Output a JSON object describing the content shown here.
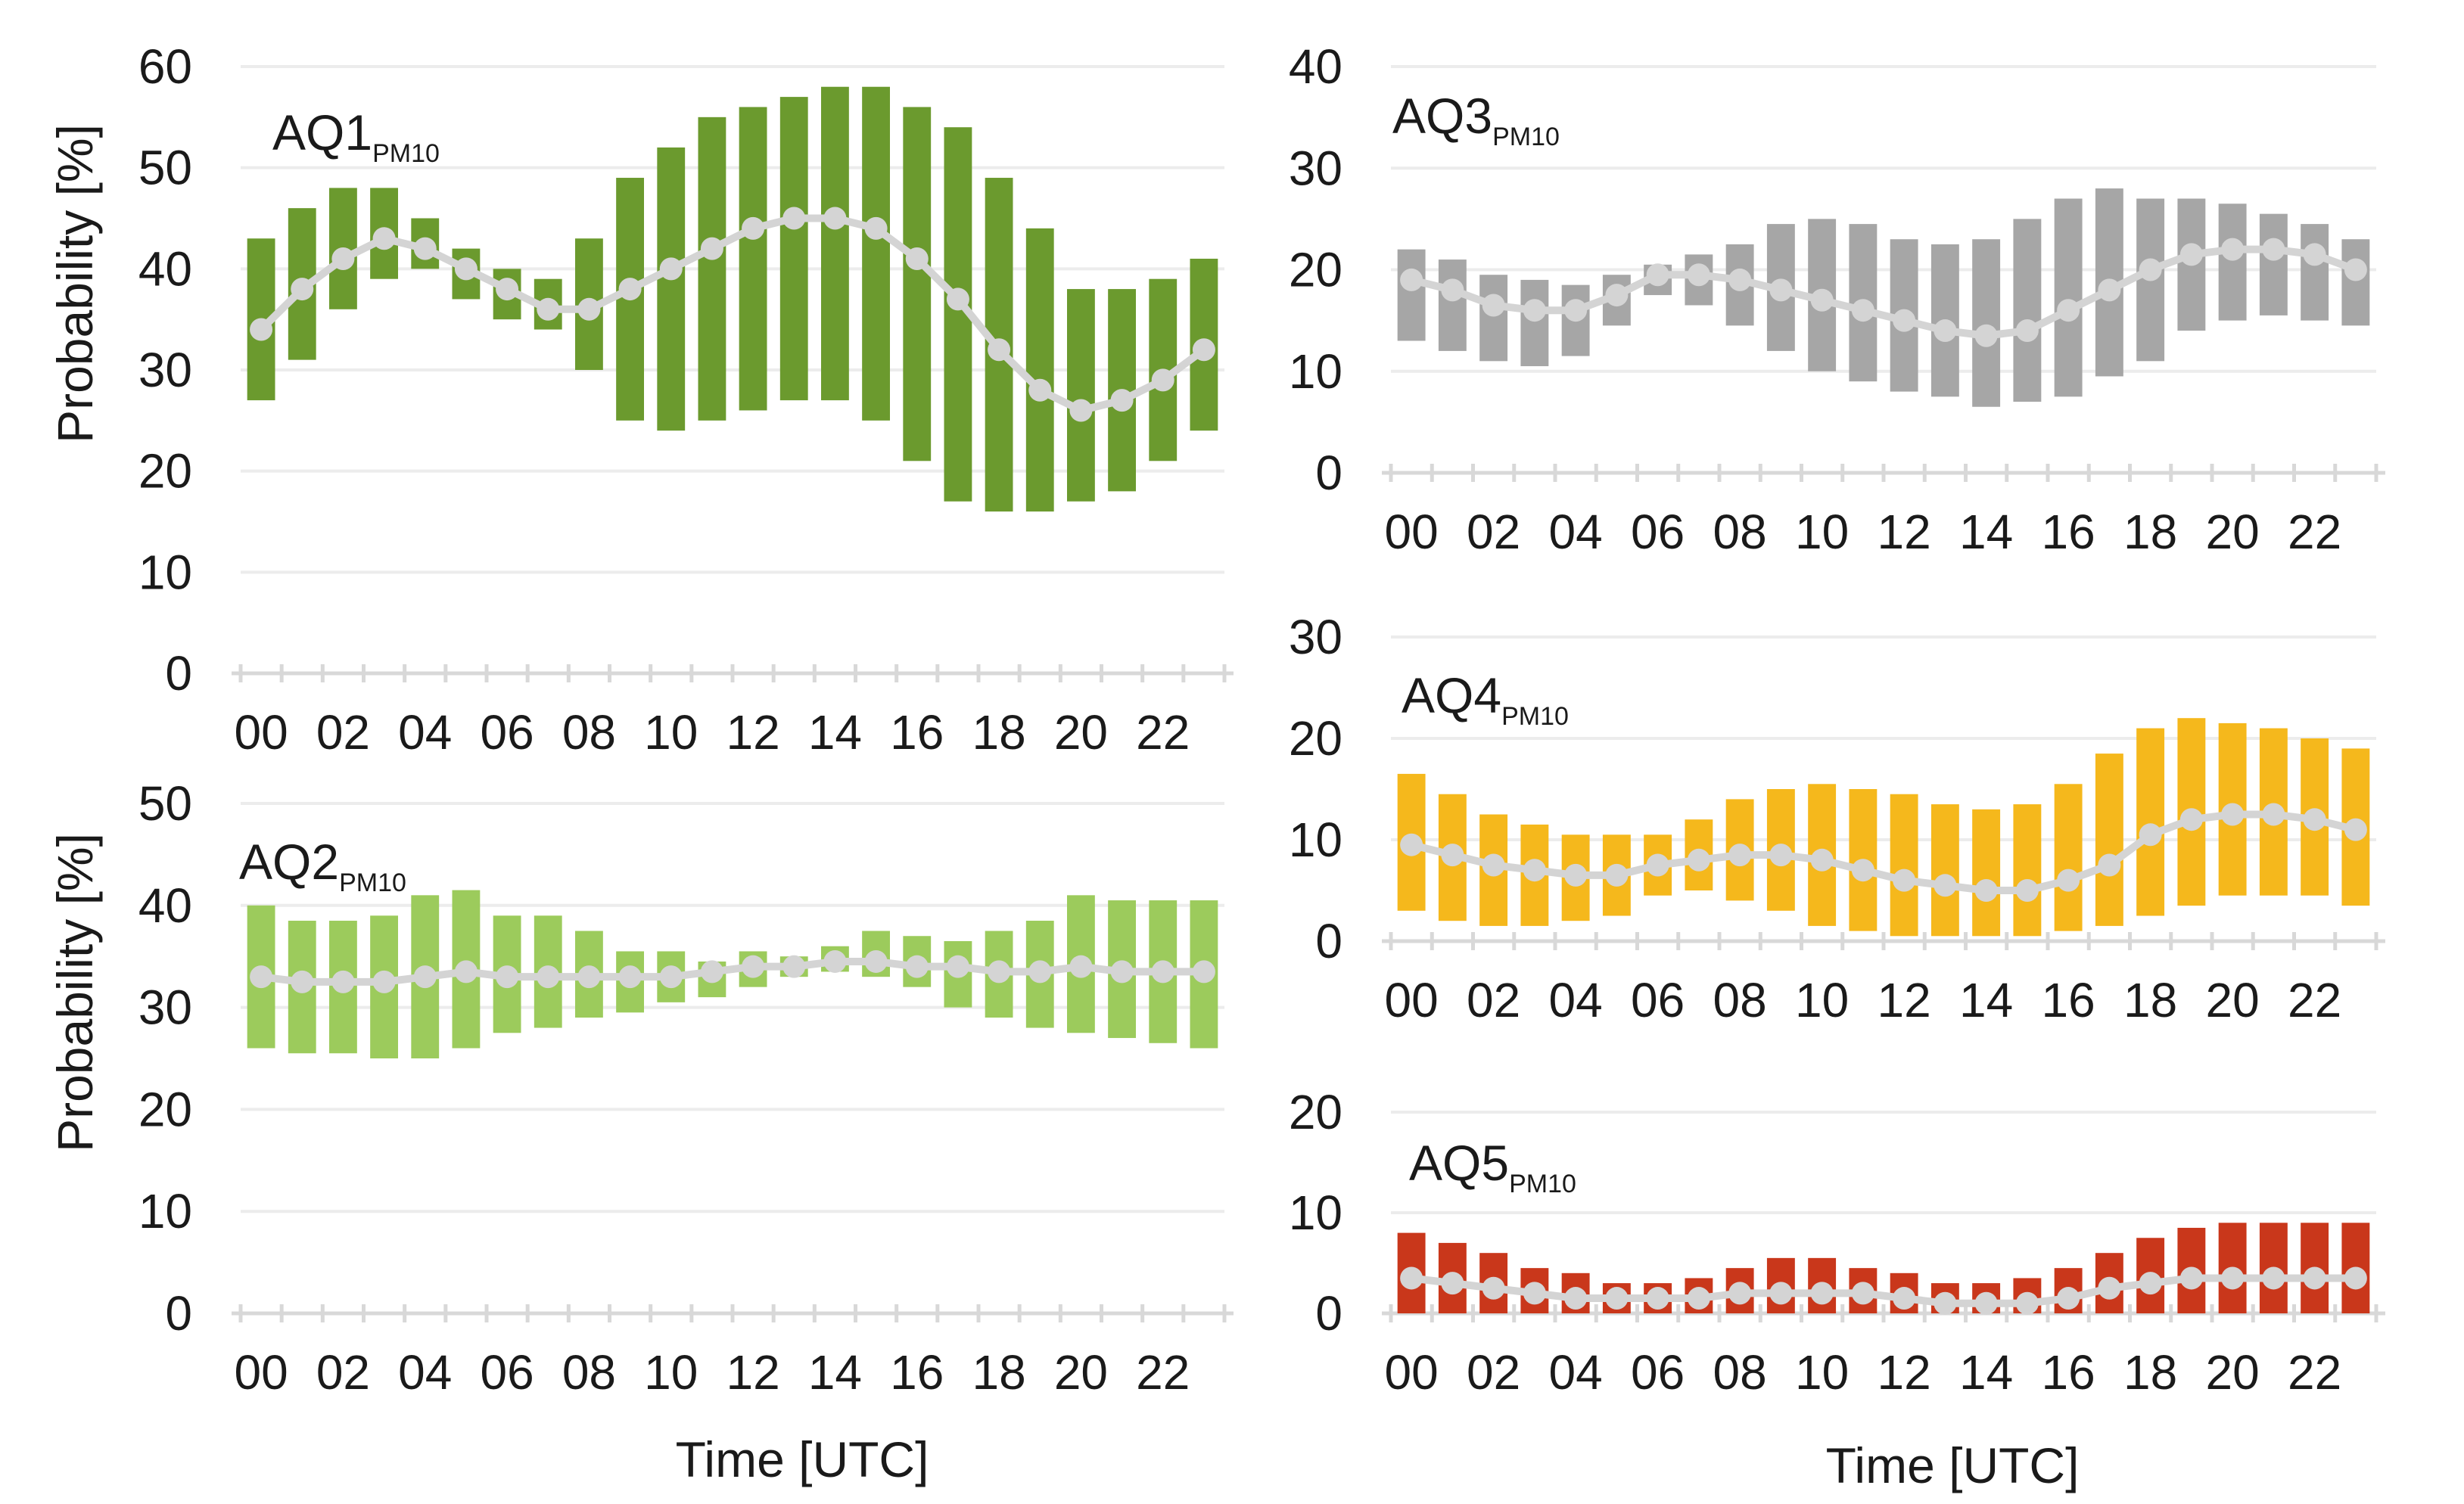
{
  "chart_data": [
    {
      "type": "bar",
      "panel": "AQ1",
      "title": "AQ1",
      "title_subscript": "PM10",
      "ylabel": "Probability [%]",
      "xlabel": "",
      "ylim": [
        0,
        60
      ],
      "yticks": [
        "0",
        "10",
        "20",
        "30",
        "40",
        "50",
        "60"
      ],
      "xtick_labels": [
        "00",
        "02",
        "04",
        "06",
        "08",
        "10",
        "12",
        "14",
        "16",
        "18",
        "20",
        "22"
      ],
      "color": "#6b9a2e",
      "hours": [
        0,
        1,
        2,
        3,
        4,
        5,
        6,
        7,
        8,
        9,
        10,
        11,
        12,
        13,
        14,
        15,
        16,
        17,
        18,
        19,
        20,
        21,
        22,
        23
      ],
      "low": [
        27,
        31,
        36,
        39,
        40,
        37,
        35,
        34,
        30,
        25,
        24,
        25,
        26,
        27,
        27,
        25,
        21,
        17,
        16,
        16,
        17,
        18,
        21,
        24
      ],
      "high": [
        43,
        46,
        48,
        48,
        45,
        42,
        40,
        39,
        43,
        49,
        52,
        55,
        56,
        57,
        58,
        58,
        56,
        54,
        49,
        44,
        38,
        38,
        39,
        41
      ],
      "mean": [
        34,
        38,
        41,
        43,
        42,
        40,
        38,
        36,
        36,
        38,
        40,
        42,
        44,
        45,
        45,
        44,
        41,
        37,
        32,
        28,
        26,
        27,
        29,
        32
      ]
    },
    {
      "type": "bar",
      "panel": "AQ2",
      "title": "AQ2",
      "title_subscript": "PM10",
      "ylabel": "Probability [%]",
      "xlabel": "Time [UTC]",
      "ylim": [
        0,
        50
      ],
      "yticks": [
        "0",
        "10",
        "20",
        "30",
        "40",
        "50"
      ],
      "xtick_labels": [
        "00",
        "02",
        "04",
        "06",
        "08",
        "10",
        "12",
        "14",
        "16",
        "18",
        "20",
        "22"
      ],
      "color": "#9ccb5c",
      "hours": [
        0,
        1,
        2,
        3,
        4,
        5,
        6,
        7,
        8,
        9,
        10,
        11,
        12,
        13,
        14,
        15,
        16,
        17,
        18,
        19,
        20,
        21,
        22,
        23
      ],
      "low": [
        26,
        25.5,
        25.5,
        25,
        25,
        26,
        27.5,
        28,
        29,
        29.5,
        30.5,
        31,
        32,
        33,
        33.5,
        33,
        32,
        30,
        29,
        28,
        27.5,
        27,
        26.5,
        26
      ],
      "high": [
        40,
        38.5,
        38.5,
        39,
        41,
        41.5,
        39,
        39,
        37.5,
        35.5,
        35.5,
        34.5,
        35.5,
        35,
        36,
        37.5,
        37,
        36.5,
        37.5,
        38.5,
        41,
        40.5,
        40.5,
        40.5
      ],
      "mean": [
        33,
        32.5,
        32.5,
        32.5,
        33,
        33.5,
        33,
        33,
        33,
        33,
        33,
        33.5,
        34,
        34,
        34.5,
        34.5,
        34,
        34,
        33.5,
        33.5,
        34,
        33.5,
        33.5,
        33.5
      ]
    },
    {
      "type": "bar",
      "panel": "AQ3",
      "title": "AQ3",
      "title_subscript": "PM10",
      "ylabel": "",
      "xlabel": "",
      "ylim": [
        0,
        40
      ],
      "yticks": [
        "0",
        "10",
        "20",
        "30",
        "40"
      ],
      "xtick_labels": [
        "00",
        "02",
        "04",
        "06",
        "08",
        "10",
        "12",
        "14",
        "16",
        "18",
        "20",
        "22"
      ],
      "color": "#a6a6a6",
      "hours": [
        0,
        1,
        2,
        3,
        4,
        5,
        6,
        7,
        8,
        9,
        10,
        11,
        12,
        13,
        14,
        15,
        16,
        17,
        18,
        19,
        20,
        21,
        22,
        23
      ],
      "low": [
        13,
        12,
        11,
        10.5,
        11.5,
        14.5,
        17.5,
        16.5,
        14.5,
        12,
        10,
        9,
        8,
        7.5,
        6.5,
        7,
        7.5,
        9.5,
        11,
        14,
        15,
        15.5,
        15,
        14.5
      ],
      "high": [
        22,
        21,
        19.5,
        19,
        18.5,
        19.5,
        20.5,
        21.5,
        22.5,
        24.5,
        25,
        24.5,
        23,
        22.5,
        23,
        25,
        27,
        28,
        27,
        27,
        26.5,
        25.5,
        24.5,
        23
      ],
      "mean": [
        19,
        18,
        16.5,
        16,
        16,
        17.5,
        19.5,
        19.5,
        19,
        18,
        17,
        16,
        15,
        14,
        13.5,
        14,
        16,
        18,
        20,
        21.5,
        22,
        22,
        21.5,
        20
      ]
    },
    {
      "type": "bar",
      "panel": "AQ4",
      "title": "AQ4",
      "title_subscript": "PM10",
      "ylabel": "",
      "xlabel": "",
      "ylim": [
        0,
        30
      ],
      "yticks": [
        "0",
        "10",
        "20",
        "30"
      ],
      "xtick_labels": [
        "00",
        "02",
        "04",
        "06",
        "08",
        "10",
        "12",
        "14",
        "16",
        "18",
        "20",
        "22"
      ],
      "color": "#f5b81c",
      "hours": [
        0,
        1,
        2,
        3,
        4,
        5,
        6,
        7,
        8,
        9,
        10,
        11,
        12,
        13,
        14,
        15,
        16,
        17,
        18,
        19,
        20,
        21,
        22,
        23
      ],
      "low": [
        3,
        2,
        1.5,
        1.5,
        2,
        2.5,
        4.5,
        5,
        4,
        3,
        1.5,
        1,
        0.5,
        0.5,
        0.5,
        0.5,
        1,
        1.5,
        2.5,
        3.5,
        4.5,
        4.5,
        4.5,
        3.5
      ],
      "high": [
        16.5,
        14.5,
        12.5,
        11.5,
        10.5,
        10.5,
        10.5,
        12,
        14,
        15,
        15.5,
        15,
        14.5,
        13.5,
        13,
        13.5,
        15.5,
        18.5,
        21,
        22,
        21.5,
        21,
        20,
        19
      ],
      "mean": [
        9.5,
        8.5,
        7.5,
        7,
        6.5,
        6.5,
        7.5,
        8,
        8.5,
        8.5,
        8,
        7,
        6,
        5.5,
        5,
        5,
        6,
        7.5,
        10.5,
        12,
        12.5,
        12.5,
        12,
        11
      ]
    },
    {
      "type": "bar",
      "panel": "AQ5",
      "title": "AQ5",
      "title_subscript": "PM10",
      "ylabel": "",
      "xlabel": "Time [UTC]",
      "ylim": [
        0,
        20
      ],
      "yticks": [
        "0",
        "10",
        "20"
      ],
      "xtick_labels": [
        "00",
        "02",
        "04",
        "06",
        "08",
        "10",
        "12",
        "14",
        "16",
        "18",
        "20",
        "22"
      ],
      "color": "#c9371b",
      "hours": [
        0,
        1,
        2,
        3,
        4,
        5,
        6,
        7,
        8,
        9,
        10,
        11,
        12,
        13,
        14,
        15,
        16,
        17,
        18,
        19,
        20,
        21,
        22,
        23
      ],
      "low": [
        0,
        0,
        0,
        0,
        0,
        0,
        0,
        0,
        0,
        0,
        0,
        0,
        0,
        0,
        0,
        0,
        0,
        0,
        0,
        0,
        0,
        0,
        0,
        0
      ],
      "high": [
        8,
        7,
        6,
        4.5,
        4,
        3,
        3,
        3.5,
        4.5,
        5.5,
        5.5,
        4.5,
        4,
        3,
        3,
        3.5,
        4.5,
        6,
        7.5,
        8.5,
        9,
        9,
        9,
        9
      ],
      "mean": [
        3.5,
        3,
        2.5,
        2,
        1.5,
        1.5,
        1.5,
        1.5,
        2,
        2,
        2,
        2,
        1.5,
        1,
        1,
        1,
        1.5,
        2.5,
        3,
        3.5,
        3.5,
        3.5,
        3.5,
        3.5
      ]
    }
  ]
}
